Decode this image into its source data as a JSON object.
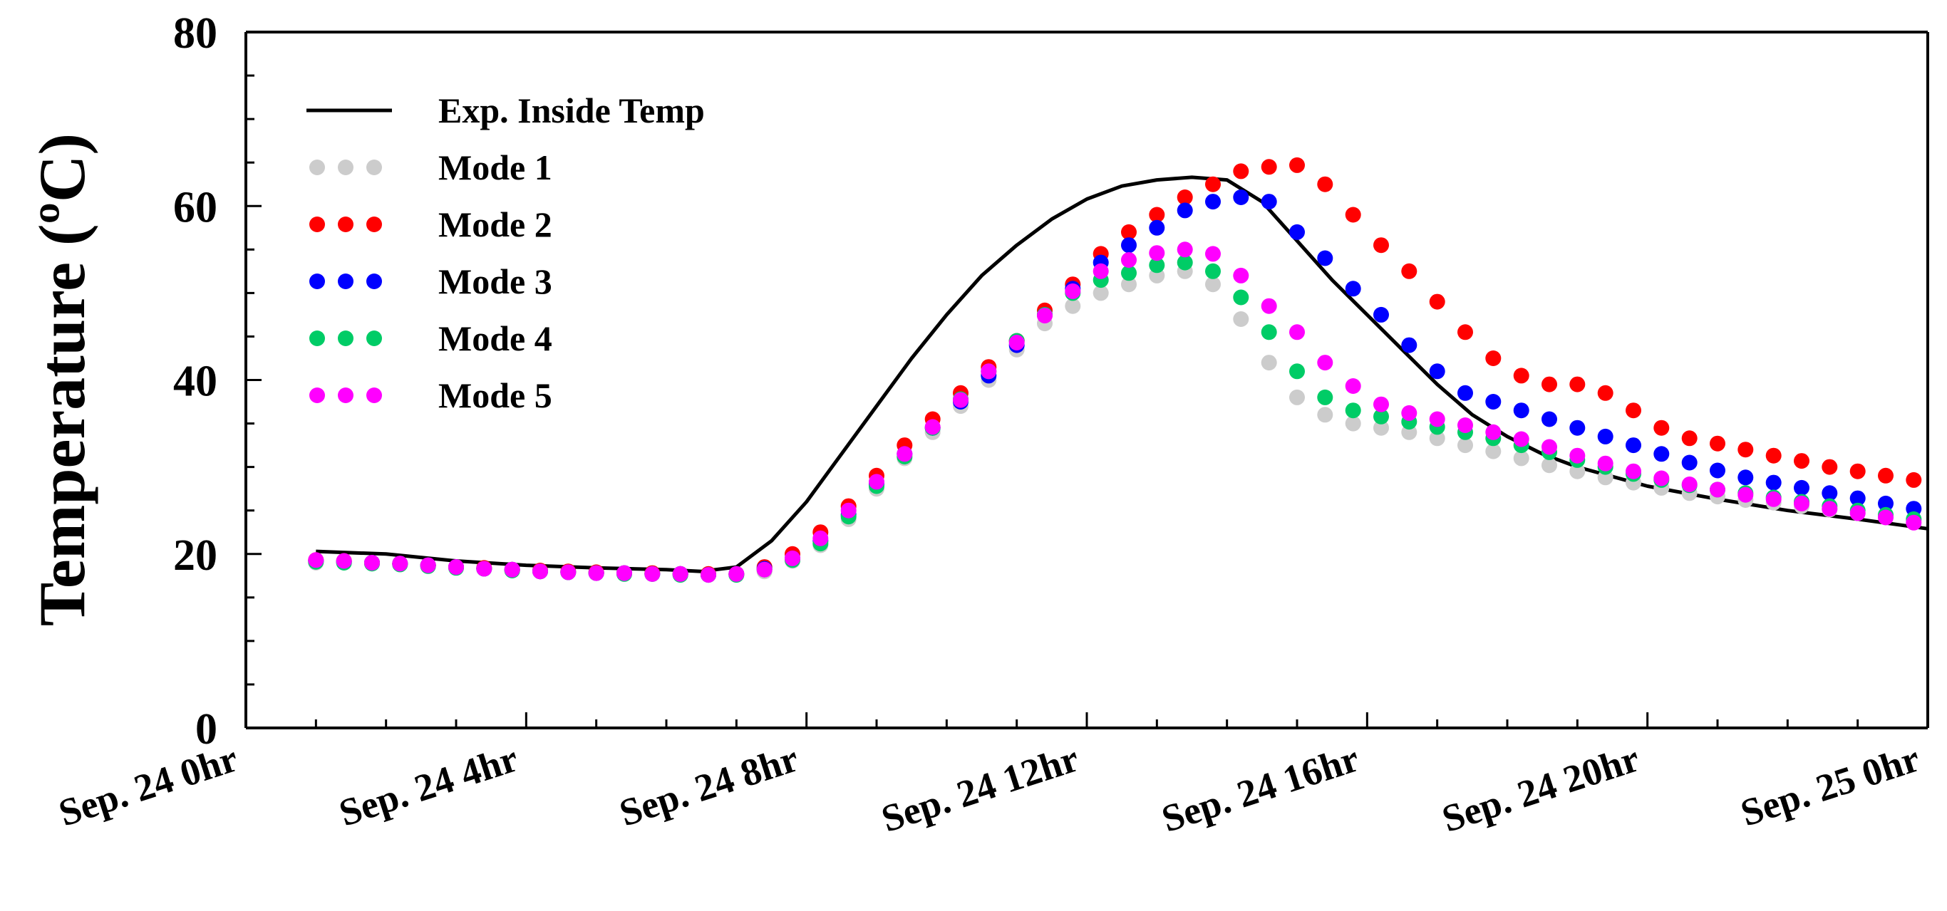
{
  "chart_data": {
    "type": "line",
    "xlabel": "",
    "ylabel": "Temperature (ºC)",
    "xlim": [
      0,
      24
    ],
    "ylim": [
      0,
      80
    ],
    "yticks": [
      0,
      20,
      40,
      60,
      80
    ],
    "ytick_labels": [
      "0",
      "20",
      "40",
      "60",
      "80"
    ],
    "xticks": [
      0,
      4,
      8,
      12,
      16,
      20,
      24
    ],
    "xtick_labels": [
      "Sep. 24 0hr",
      "Sep. 24 4hr",
      "Sep. 24 8hr",
      "Sep. 24 12hr",
      "Sep. 24 16hr",
      "Sep. 24 20hr",
      "Sep. 25 0hr"
    ],
    "legend_position": "top-left",
    "series": [
      {
        "name": "Exp. Inside Temp",
        "style": "line",
        "color": "#000000",
        "x": [
          1,
          2,
          3,
          4,
          5,
          6,
          6.5,
          7,
          7.5,
          8,
          8.5,
          9,
          9.5,
          10,
          10.5,
          11,
          11.5,
          12,
          12.5,
          13,
          13.5,
          14,
          14.5,
          15,
          15.5,
          16,
          16.5,
          17,
          17.5,
          18,
          18.5,
          19,
          20,
          21,
          22,
          23,
          24
        ],
        "values": [
          20.3,
          20.0,
          19.2,
          18.7,
          18.4,
          18.2,
          18.0,
          18.5,
          21.5,
          26.0,
          31.5,
          37.0,
          42.5,
          47.5,
          52.0,
          55.5,
          58.5,
          60.8,
          62.3,
          63.0,
          63.3,
          63.0,
          60.5,
          56.0,
          51.5,
          47.5,
          43.5,
          39.5,
          36.0,
          33.5,
          31.5,
          30.0,
          27.8,
          26.3,
          25.0,
          24.0,
          22.9
        ]
      },
      {
        "name": "Mode 1",
        "style": "dots",
        "color": "#cccccc",
        "x": [
          1,
          1.4,
          1.8,
          2.2,
          2.6,
          3,
          3.4,
          3.8,
          4.2,
          4.6,
          5,
          5.4,
          5.8,
          6.2,
          6.6,
          7,
          7.4,
          7.8,
          8.2,
          8.6,
          9,
          9.4,
          9.8,
          10.2,
          10.6,
          11,
          11.4,
          11.8,
          12.2,
          12.6,
          13,
          13.4,
          13.8,
          14.2,
          14.6,
          15,
          15.4,
          15.8,
          16.2,
          16.6,
          17,
          17.4,
          17.8,
          18.2,
          18.6,
          19,
          19.4,
          19.8,
          20.2,
          20.6,
          21,
          21.4,
          21.8,
          22.2,
          22.6,
          23,
          23.4,
          23.8
        ],
        "values": [
          19.0,
          19.0,
          18.9,
          18.8,
          18.6,
          18.5,
          18.3,
          18.1,
          18.0,
          17.9,
          17.8,
          17.7,
          17.7,
          17.6,
          17.6,
          17.6,
          18.0,
          19.2,
          21.0,
          24.0,
          27.5,
          31.0,
          34.0,
          37.0,
          40.0,
          43.5,
          46.5,
          48.5,
          50.0,
          51.0,
          52.0,
          52.5,
          51.0,
          47.0,
          42.0,
          38.0,
          36.0,
          35.0,
          34.5,
          34.0,
          33.3,
          32.5,
          31.8,
          31.0,
          30.2,
          29.5,
          28.8,
          28.2,
          27.6,
          27.0,
          26.6,
          26.2,
          25.9,
          25.5,
          25.1,
          24.7,
          24.3,
          23.8
        ]
      },
      {
        "name": "Mode 2",
        "style": "dots",
        "color": "#ff0000",
        "x": [
          1,
          1.4,
          1.8,
          2.2,
          2.6,
          3,
          3.4,
          3.8,
          4.2,
          4.6,
          5,
          5.4,
          5.8,
          6.2,
          6.6,
          7,
          7.4,
          7.8,
          8.2,
          8.6,
          9,
          9.4,
          9.8,
          10.2,
          10.6,
          11,
          11.4,
          11.8,
          12.2,
          12.6,
          13,
          13.4,
          13.8,
          14.2,
          14.6,
          15,
          15.4,
          15.8,
          16.2,
          16.6,
          17,
          17.4,
          17.8,
          18.2,
          18.6,
          19,
          19.4,
          19.8,
          20.2,
          20.6,
          21,
          21.4,
          21.8,
          22.2,
          22.6,
          23,
          23.4,
          23.8
        ],
        "values": [
          19.3,
          19.2,
          19.0,
          18.9,
          18.7,
          18.5,
          18.4,
          18.2,
          18.1,
          18.0,
          17.9,
          17.8,
          17.8,
          17.7,
          17.7,
          17.7,
          18.5,
          20.0,
          22.5,
          25.5,
          29.0,
          32.5,
          35.5,
          38.5,
          41.5,
          44.5,
          48.0,
          51.0,
          54.5,
          57.0,
          59.0,
          61.0,
          62.5,
          64.0,
          64.5,
          64.7,
          62.5,
          59.0,
          55.5,
          52.5,
          49.0,
          45.5,
          42.5,
          40.5,
          39.5,
          39.5,
          38.5,
          36.5,
          34.5,
          33.3,
          32.7,
          32.0,
          31.3,
          30.7,
          30.0,
          29.5,
          29.0,
          28.5
        ]
      },
      {
        "name": "Mode 3",
        "style": "dots",
        "color": "#0000ff",
        "x": [
          1,
          1.4,
          1.8,
          2.2,
          2.6,
          3,
          3.4,
          3.8,
          4.2,
          4.6,
          5,
          5.4,
          5.8,
          6.2,
          6.6,
          7,
          7.4,
          7.8,
          8.2,
          8.6,
          9,
          9.4,
          9.8,
          10.2,
          10.6,
          11,
          11.4,
          11.8,
          12.2,
          12.6,
          13,
          13.4,
          13.8,
          14.2,
          14.6,
          15,
          15.4,
          15.8,
          16.2,
          16.6,
          17,
          17.4,
          17.8,
          18.2,
          18.6,
          19,
          19.4,
          19.8,
          20.2,
          20.6,
          21,
          21.4,
          21.8,
          22.2,
          22.6,
          23,
          23.4,
          23.8
        ],
        "values": [
          19.2,
          19.1,
          19.0,
          18.9,
          18.7,
          18.5,
          18.3,
          18.2,
          18.0,
          17.9,
          17.8,
          17.8,
          17.7,
          17.7,
          17.6,
          17.7,
          18.3,
          19.5,
          21.5,
          24.5,
          28.0,
          31.5,
          34.5,
          37.5,
          40.5,
          44.0,
          47.5,
          50.5,
          53.5,
          55.5,
          57.5,
          59.5,
          60.5,
          61.0,
          60.5,
          57.0,
          54.0,
          50.5,
          47.5,
          44.0,
          41.0,
          38.5,
          37.5,
          36.5,
          35.5,
          34.5,
          33.5,
          32.5,
          31.5,
          30.5,
          29.6,
          28.8,
          28.2,
          27.6,
          27.0,
          26.4,
          25.8,
          25.2
        ]
      },
      {
        "name": "Mode 4",
        "style": "dots",
        "color": "#00cc66",
        "x": [
          1,
          1.4,
          1.8,
          2.2,
          2.6,
          3,
          3.4,
          3.8,
          4.2,
          4.6,
          5,
          5.4,
          5.8,
          6.2,
          6.6,
          7,
          7.4,
          7.8,
          8.2,
          8.6,
          9,
          9.4,
          9.8,
          10.2,
          10.6,
          11,
          11.4,
          11.8,
          12.2,
          12.6,
          13,
          13.4,
          13.8,
          14.2,
          14.6,
          15,
          15.4,
          15.8,
          16.2,
          16.6,
          17,
          17.4,
          17.8,
          18.2,
          18.6,
          19,
          19.4,
          19.8,
          20.2,
          20.6,
          21,
          21.4,
          21.8,
          22.2,
          22.6,
          23,
          23.4,
          23.8
        ],
        "values": [
          19.1,
          19.0,
          18.9,
          18.8,
          18.6,
          18.4,
          18.3,
          18.1,
          18.0,
          17.9,
          17.8,
          17.7,
          17.7,
          17.6,
          17.6,
          17.6,
          18.2,
          19.3,
          21.2,
          24.3,
          27.8,
          31.2,
          34.5,
          37.8,
          41.0,
          44.5,
          47.5,
          50.0,
          51.5,
          52.3,
          53.2,
          53.5,
          52.5,
          49.5,
          45.5,
          41.0,
          38.0,
          36.5,
          35.8,
          35.2,
          34.6,
          34.0,
          33.3,
          32.5,
          31.7,
          30.8,
          30.0,
          29.2,
          28.5,
          27.9,
          27.4,
          27.0,
          26.5,
          26.0,
          25.5,
          25.0,
          24.5,
          24.0
        ]
      },
      {
        "name": "Mode 5",
        "style": "dots",
        "color": "#ff00ff",
        "x": [
          1,
          1.4,
          1.8,
          2.2,
          2.6,
          3,
          3.4,
          3.8,
          4.2,
          4.6,
          5,
          5.4,
          5.8,
          6.2,
          6.6,
          7,
          7.4,
          7.8,
          8.2,
          8.6,
          9,
          9.4,
          9.8,
          10.2,
          10.6,
          11,
          11.4,
          11.8,
          12.2,
          12.6,
          13,
          13.4,
          13.8,
          14.2,
          14.6,
          15,
          15.4,
          15.8,
          16.2,
          16.6,
          17,
          17.4,
          17.8,
          18.2,
          18.6,
          19,
          19.4,
          19.8,
          20.2,
          20.6,
          21,
          21.4,
          21.8,
          22.2,
          22.6,
          23,
          23.4,
          23.8
        ],
        "values": [
          19.3,
          19.2,
          19.0,
          18.9,
          18.7,
          18.5,
          18.3,
          18.2,
          18.0,
          17.9,
          17.8,
          17.8,
          17.7,
          17.7,
          17.6,
          17.7,
          18.2,
          19.5,
          21.8,
          25.0,
          28.3,
          31.5,
          34.6,
          37.7,
          41.0,
          44.3,
          47.4,
          50.2,
          52.5,
          53.8,
          54.6,
          55.0,
          54.5,
          52.0,
          48.5,
          45.5,
          42.0,
          39.3,
          37.2,
          36.2,
          35.5,
          34.8,
          34.0,
          33.2,
          32.3,
          31.3,
          30.4,
          29.5,
          28.7,
          28.0,
          27.4,
          26.8,
          26.3,
          25.8,
          25.2,
          24.7,
          24.2,
          23.6
        ]
      }
    ]
  }
}
